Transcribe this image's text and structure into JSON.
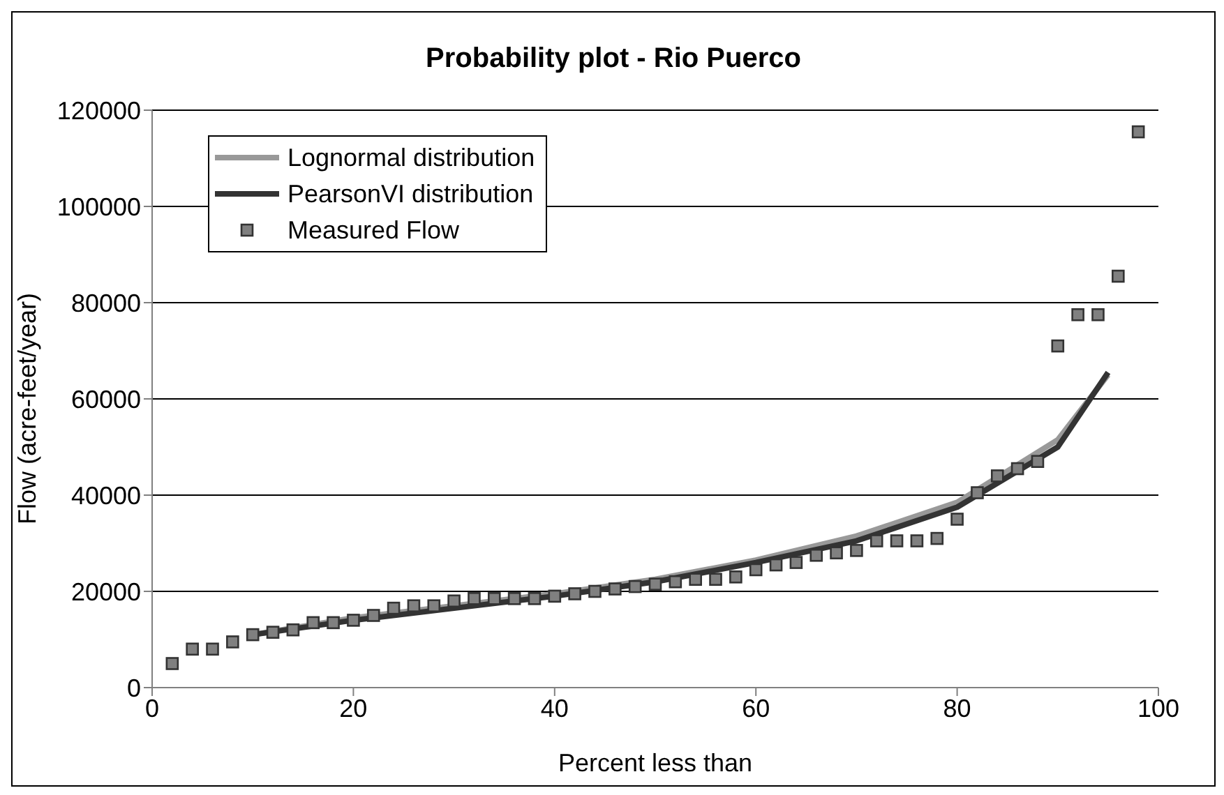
{
  "chart_data": {
    "type": "scatter",
    "title": "Probability plot - Rio Puerco",
    "xlabel": "Percent less than",
    "ylabel": "Flow (acre-feet/year)",
    "xlim": [
      0,
      100
    ],
    "xticks": [
      0,
      20,
      40,
      60,
      80,
      100
    ],
    "ylim": [
      0,
      120000
    ],
    "yticks": [
      0,
      20000,
      40000,
      60000,
      80000,
      100000,
      120000
    ],
    "grid": "y",
    "legend": "top left",
    "series": [
      {
        "name": "Lognormal distribution",
        "type": "line",
        "color": "#999999",
        "marker": "none",
        "x": [
          10,
          20,
          30,
          40,
          50,
          60,
          70,
          80,
          90,
          95
        ],
        "values": [
          11000,
          14500,
          17000,
          19500,
          22500,
          26500,
          31500,
          38500,
          51500,
          65000
        ]
      },
      {
        "name": "PearsonVI distribution",
        "type": "line",
        "color": "#333333",
        "marker": "none",
        "x": [
          10,
          20,
          30,
          40,
          50,
          60,
          70,
          80,
          90,
          95
        ],
        "values": [
          11000,
          14000,
          16500,
          19000,
          22000,
          26000,
          30500,
          37500,
          50000,
          65500
        ]
      },
      {
        "name": "Measured Flow",
        "color": "#808080",
        "marker": "square",
        "x": [
          2,
          4,
          6,
          8,
          10,
          12,
          14,
          16,
          18,
          20,
          22,
          24,
          26,
          28,
          30,
          32,
          34,
          36,
          38,
          40,
          42,
          44,
          46,
          48,
          50,
          52,
          54,
          56,
          58,
          60,
          62,
          64,
          66,
          68,
          70,
          72,
          74,
          76,
          78,
          80,
          82,
          84,
          86,
          88,
          90,
          92,
          94,
          96,
          98
        ],
        "values": [
          5000,
          8000,
          8000,
          9500,
          11000,
          11500,
          12000,
          13500,
          13500,
          14000,
          15000,
          16500,
          17000,
          17000,
          18000,
          18500,
          18500,
          18500,
          18500,
          19000,
          19500,
          20000,
          20500,
          21000,
          21500,
          22000,
          22500,
          22500,
          23000,
          24500,
          25500,
          26000,
          27500,
          28000,
          28500,
          30500,
          30500,
          30500,
          31000,
          35000,
          40500,
          44000,
          45500,
          47000,
          71000,
          77500,
          77500,
          85500,
          115500
        ]
      }
    ]
  }
}
